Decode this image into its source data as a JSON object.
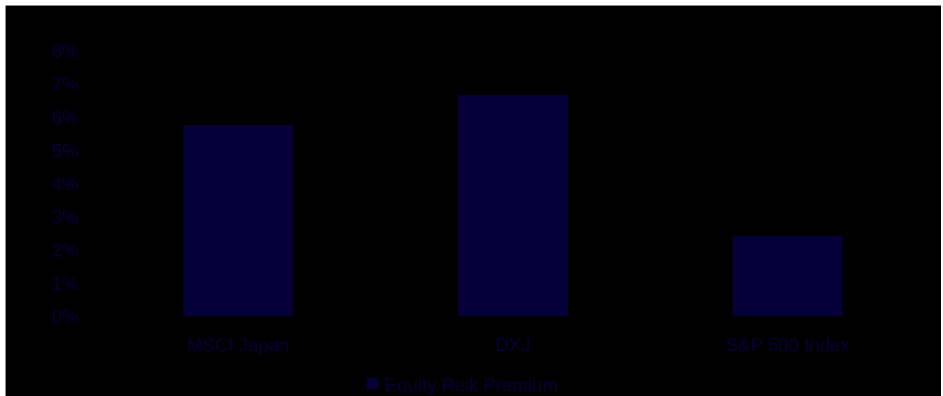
{
  "chart_data": {
    "type": "bar",
    "categories": [
      "MSCI Japan",
      "DXJ",
      "S&P 500 Index"
    ],
    "series": [
      {
        "name": "Equity Risk Premium",
        "values": [
          5.75,
          6.65,
          2.4
        ]
      }
    ],
    "ylim": [
      0,
      8
    ],
    "yticks": [
      "0%",
      "1%",
      "2%",
      "3%",
      "4%",
      "5%",
      "6%",
      "7%",
      "8%"
    ],
    "grid": false,
    "legend": "bottom-center",
    "colors": {
      "background": "#000000",
      "bar": "#060038",
      "text": "#060038"
    }
  }
}
